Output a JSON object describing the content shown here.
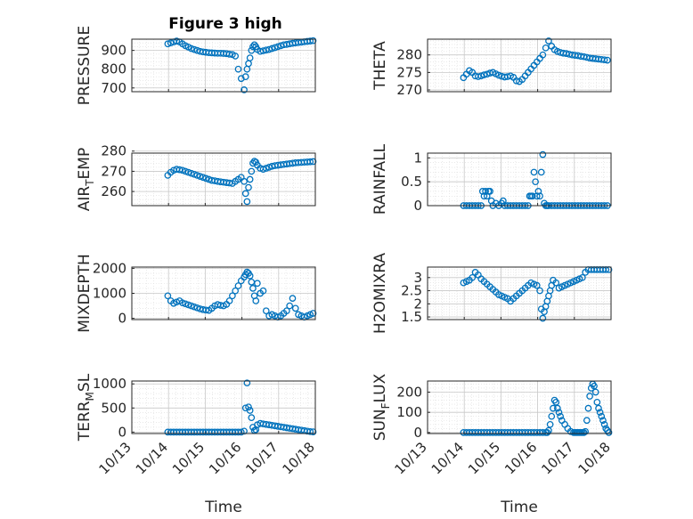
{
  "figure_title": "Figure 3 high",
  "series_color": "#0072BD",
  "x_axis": {
    "label": "Time",
    "ticks": [
      "10/13",
      "10/14",
      "10/15",
      "10/16",
      "10/17",
      "10/18"
    ],
    "xlim": [
      0,
      5
    ]
  },
  "chart_data": [
    {
      "type": "scatter",
      "title": "Figure 3 high",
      "ylabel": "PRESSURE",
      "ylabel_parts": [],
      "ylim": [
        680,
        960
      ],
      "yticks": [
        700,
        800,
        900
      ],
      "ytick_labels": [
        "700",
        "800",
        "900"
      ],
      "show_xticks": false,
      "x": [
        0.98,
        1.06,
        1.14,
        1.22,
        1.3,
        1.38,
        1.46,
        1.54,
        1.62,
        1.7,
        1.78,
        1.86,
        1.94,
        2.02,
        2.1,
        2.18,
        2.26,
        2.34,
        2.42,
        2.5,
        2.58,
        2.66,
        2.74,
        2.82,
        2.9,
        2.98,
        3.06,
        3.1,
        3.14,
        3.18,
        3.22,
        3.26,
        3.3,
        3.34,
        3.38,
        3.42,
        3.5,
        3.58,
        3.66,
        3.74,
        3.82,
        3.9,
        3.98,
        4.06,
        4.14,
        4.22,
        4.3,
        4.38,
        4.46,
        4.54,
        4.62,
        4.7,
        4.78,
        4.86,
        4.94
      ],
      "y": [
        935,
        940,
        945,
        950,
        945,
        935,
        925,
        918,
        910,
        905,
        900,
        895,
        892,
        890,
        888,
        887,
        886,
        885,
        885,
        884,
        883,
        880,
        878,
        870,
        800,
        750,
        690,
        760,
        800,
        830,
        860,
        900,
        920,
        930,
        920,
        905,
        895,
        898,
        902,
        905,
        910,
        915,
        920,
        925,
        930,
        932,
        935,
        938,
        940,
        942,
        944,
        946,
        948,
        950,
        952
      ]
    },
    {
      "type": "scatter",
      "title": "",
      "ylabel": "THETA",
      "ylabel_parts": [],
      "ylim": [
        269.5,
        284.5
      ],
      "yticks": [
        270,
        275,
        280
      ],
      "ytick_labels": [
        "270",
        "275",
        "280"
      ],
      "show_xticks": false,
      "x": [
        0.98,
        1.06,
        1.14,
        1.22,
        1.3,
        1.38,
        1.46,
        1.54,
        1.62,
        1.7,
        1.78,
        1.86,
        1.94,
        2.02,
        2.1,
        2.18,
        2.26,
        2.34,
        2.42,
        2.5,
        2.58,
        2.66,
        2.74,
        2.82,
        2.9,
        2.98,
        3.06,
        3.14,
        3.22,
        3.3,
        3.38,
        3.46,
        3.54,
        3.62,
        3.7,
        3.78,
        3.86,
        3.94,
        4.02,
        4.1,
        4.18,
        4.26,
        4.34,
        4.42,
        4.5,
        4.58,
        4.66,
        4.74,
        4.82,
        4.9
      ],
      "y": [
        273.5,
        274.5,
        275.5,
        275,
        274,
        273.8,
        274,
        274.3,
        274.5,
        274.8,
        275,
        274.6,
        274.2,
        273.9,
        273.7,
        273.8,
        274,
        273.6,
        272.6,
        272.4,
        273,
        274,
        275,
        276,
        277,
        278,
        279,
        280,
        282,
        284,
        282.5,
        281.5,
        281,
        280.7,
        280.5,
        280.4,
        280.2,
        280,
        279.9,
        279.8,
        279.6,
        279.5,
        279.3,
        279.1,
        279,
        278.9,
        278.8,
        278.7,
        278.6,
        278.5
      ]
    },
    {
      "type": "scatter",
      "title": "",
      "ylabel": "",
      "ylabel_parts": [
        "AIR",
        "T",
        "EMP"
      ],
      "ylim": [
        253,
        279
      ],
      "yticks": [
        260,
        270,
        280
      ],
      "ytick_labels": [
        "260",
        "270",
        "280"
      ],
      "show_xticks": false,
      "x": [
        0.98,
        1.06,
        1.14,
        1.22,
        1.3,
        1.38,
        1.46,
        1.54,
        1.62,
        1.7,
        1.78,
        1.86,
        1.94,
        2.02,
        2.1,
        2.18,
        2.26,
        2.34,
        2.42,
        2.5,
        2.58,
        2.66,
        2.74,
        2.82,
        2.9,
        2.98,
        3.06,
        3.1,
        3.14,
        3.18,
        3.22,
        3.26,
        3.3,
        3.34,
        3.38,
        3.42,
        3.5,
        3.58,
        3.66,
        3.74,
        3.82,
        3.9,
        3.98,
        4.06,
        4.14,
        4.22,
        4.3,
        4.38,
        4.46,
        4.54,
        4.62,
        4.7,
        4.78,
        4.86,
        4.94
      ],
      "y": [
        268,
        269.5,
        270.5,
        271,
        270.8,
        270.5,
        270,
        269.5,
        269,
        268.5,
        268,
        267.5,
        267,
        266.5,
        266,
        265.5,
        265.3,
        265,
        264.8,
        264.6,
        264.4,
        264.2,
        264,
        265,
        266,
        267,
        265,
        259,
        255,
        262,
        266,
        270,
        274,
        275,
        274.5,
        273,
        271.5,
        271,
        271.5,
        272,
        272.5,
        272.8,
        273,
        273.2,
        273.4,
        273.6,
        273.8,
        274,
        274.2,
        274.3,
        274.4,
        274.5,
        274.6,
        274.7,
        274.8
      ]
    },
    {
      "type": "scatter",
      "title": "",
      "ylabel": "RAINFALL",
      "ylabel_parts": [],
      "ylim": [
        0,
        1.1
      ],
      "yticks": [
        0,
        0.5,
        1
      ],
      "ytick_labels": [
        "0",
        "0.5",
        "1"
      ],
      "show_xticks": false,
      "x": [
        0.98,
        1.06,
        1.14,
        1.22,
        1.3,
        1.38,
        1.46,
        1.5,
        1.54,
        1.58,
        1.62,
        1.66,
        1.7,
        1.74,
        1.78,
        1.86,
        1.94,
        2.02,
        2.06,
        2.1,
        2.18,
        2.26,
        2.34,
        2.42,
        2.5,
        2.58,
        2.66,
        2.74,
        2.78,
        2.82,
        2.86,
        2.9,
        2.94,
        2.98,
        3.02,
        3.06,
        3.1,
        3.14,
        3.18,
        3.22,
        3.26,
        3.3,
        3.38,
        3.46,
        3.54,
        3.62,
        3.7,
        3.78,
        3.86,
        3.94,
        4.02,
        4.1,
        4.18,
        4.26,
        4.34,
        4.42,
        4.5,
        4.58,
        4.66,
        4.74,
        4.82,
        4.9
      ],
      "y": [
        0,
        0,
        0,
        0,
        0,
        0,
        0,
        0.3,
        0.2,
        0.3,
        0.2,
        0.3,
        0.3,
        0.1,
        0,
        0.05,
        0,
        0.05,
        0.1,
        0,
        0,
        0,
        0,
        0,
        0,
        0,
        0,
        0,
        0.2,
        0.2,
        0.2,
        0.7,
        0.5,
        0.2,
        0.3,
        0.2,
        0.7,
        1.07,
        0.05,
        0,
        0,
        0,
        0,
        0,
        0,
        0,
        0,
        0,
        0,
        0,
        0,
        0,
        0,
        0,
        0,
        0,
        0,
        0,
        0,
        0,
        0,
        0
      ]
    },
    {
      "type": "scatter",
      "title": "",
      "ylabel": "MIXDEPTH",
      "ylabel_parts": [],
      "ylim": [
        -50,
        2050
      ],
      "yticks": [
        0,
        1000,
        2000
      ],
      "ytick_labels": [
        "0",
        "1000",
        "2000"
      ],
      "show_xticks": false,
      "x": [
        0.98,
        1.06,
        1.14,
        1.22,
        1.3,
        1.38,
        1.46,
        1.54,
        1.62,
        1.7,
        1.78,
        1.86,
        1.94,
        2.02,
        2.1,
        2.18,
        2.26,
        2.34,
        2.42,
        2.5,
        2.58,
        2.66,
        2.74,
        2.82,
        2.9,
        2.98,
        3.06,
        3.1,
        3.14,
        3.18,
        3.22,
        3.26,
        3.3,
        3.34,
        3.38,
        3.42,
        3.5,
        3.58,
        3.66,
        3.74,
        3.82,
        3.9,
        3.98,
        4.06,
        4.14,
        4.22,
        4.3,
        4.38,
        4.46,
        4.54,
        4.62,
        4.7,
        4.78,
        4.86,
        4.94
      ],
      "y": [
        900,
        700,
        600,
        650,
        700,
        620,
        580,
        540,
        500,
        460,
        420,
        380,
        350,
        330,
        320,
        400,
        500,
        550,
        520,
        500,
        560,
        700,
        900,
        1100,
        1300,
        1500,
        1650,
        1750,
        1850,
        1800,
        1700,
        1450,
        1200,
        900,
        700,
        1400,
        1000,
        1100,
        300,
        100,
        150,
        100,
        50,
        100,
        200,
        300,
        500,
        800,
        400,
        150,
        100,
        50,
        100,
        150,
        200
      ]
    },
    {
      "type": "scatter",
      "title": "",
      "ylabel": "H2OMIXRA",
      "ylabel_parts": [],
      "ylim": [
        1.4,
        3.4
      ],
      "yticks": [
        1.5,
        2,
        2.5,
        3
      ],
      "ytick_labels": [
        "1.5",
        "2",
        "2.5",
        "3"
      ],
      "show_xticks": false,
      "x": [
        0.98,
        1.06,
        1.14,
        1.22,
        1.3,
        1.38,
        1.46,
        1.54,
        1.62,
        1.7,
        1.78,
        1.86,
        1.94,
        2.02,
        2.1,
        2.18,
        2.26,
        2.34,
        2.42,
        2.5,
        2.58,
        2.66,
        2.74,
        2.82,
        2.9,
        2.98,
        3.06,
        3.1,
        3.14,
        3.18,
        3.22,
        3.26,
        3.3,
        3.34,
        3.38,
        3.42,
        3.5,
        3.58,
        3.66,
        3.74,
        3.82,
        3.9,
        3.98,
        4.06,
        4.14,
        4.22,
        4.3,
        4.38,
        4.46,
        4.54,
        4.62,
        4.7,
        4.78,
        4.86,
        4.94
      ],
      "y": [
        2.8,
        2.85,
        2.9,
        3.0,
        3.2,
        3.1,
        2.95,
        2.85,
        2.75,
        2.65,
        2.55,
        2.45,
        2.35,
        2.3,
        2.25,
        2.2,
        2.1,
        2.2,
        2.3,
        2.4,
        2.5,
        2.6,
        2.7,
        2.8,
        2.75,
        2.7,
        2.5,
        1.8,
        1.45,
        1.7,
        1.9,
        2.1,
        2.3,
        2.5,
        2.7,
        2.9,
        2.8,
        2.6,
        2.65,
        2.7,
        2.75,
        2.8,
        2.85,
        2.9,
        2.95,
        3.0,
        3.2,
        3.3,
        3.3,
        3.3,
        3.3,
        3.3,
        3.3,
        3.3,
        3.3
      ]
    },
    {
      "type": "scatter",
      "title": "",
      "ylabel": "",
      "ylabel_parts": [
        "TERR",
        "M",
        "SL"
      ],
      "ylim": [
        -30,
        1060
      ],
      "yticks": [
        0,
        500,
        1000
      ],
      "ytick_labels": [
        "0",
        "500",
        "1000"
      ],
      "show_xticks": true,
      "x": [
        0.98,
        1.06,
        1.14,
        1.22,
        1.3,
        1.38,
        1.46,
        1.54,
        1.62,
        1.7,
        1.78,
        1.86,
        1.94,
        2.02,
        2.1,
        2.18,
        2.26,
        2.34,
        2.42,
        2.5,
        2.58,
        2.66,
        2.74,
        2.82,
        2.9,
        2.98,
        3.06,
        3.1,
        3.14,
        3.18,
        3.22,
        3.26,
        3.3,
        3.34,
        3.38,
        3.42,
        3.5,
        3.58,
        3.66,
        3.74,
        3.82,
        3.9,
        3.98,
        4.06,
        4.14,
        4.22,
        4.3,
        4.38,
        4.46,
        4.54,
        4.62,
        4.7,
        4.78,
        4.86,
        4.94
      ],
      "y": [
        0,
        0,
        0,
        0,
        0,
        0,
        0,
        0,
        0,
        0,
        0,
        0,
        0,
        0,
        0,
        0,
        0,
        0,
        0,
        0,
        0,
        0,
        0,
        0,
        0,
        0,
        20,
        500,
        1020,
        520,
        450,
        300,
        100,
        30,
        50,
        150,
        180,
        170,
        160,
        150,
        140,
        130,
        120,
        110,
        100,
        90,
        80,
        70,
        60,
        50,
        40,
        30,
        20,
        10,
        5
      ]
    },
    {
      "type": "scatter",
      "title": "",
      "ylabel": "",
      "ylabel_parts": [
        "SUN",
        "F",
        "LUX"
      ],
      "ylim": [
        -5,
        255
      ],
      "yticks": [
        0,
        100,
        200
      ],
      "ytick_labels": [
        "0",
        "100",
        "200"
      ],
      "show_xticks": true,
      "x": [
        0.98,
        1.06,
        1.14,
        1.22,
        1.3,
        1.38,
        1.46,
        1.54,
        1.62,
        1.7,
        1.78,
        1.86,
        1.94,
        2.02,
        2.1,
        2.18,
        2.26,
        2.34,
        2.42,
        2.5,
        2.58,
        2.66,
        2.74,
        2.82,
        2.9,
        2.98,
        3.06,
        3.14,
        3.22,
        3.26,
        3.3,
        3.34,
        3.38,
        3.42,
        3.46,
        3.5,
        3.54,
        3.58,
        3.62,
        3.66,
        3.74,
        3.82,
        3.9,
        3.98,
        4.02,
        4.06,
        4.1,
        4.14,
        4.18,
        4.22,
        4.26,
        4.3,
        4.34,
        4.38,
        4.42,
        4.46,
        4.5,
        4.54,
        4.58,
        4.62,
        4.66,
        4.7,
        4.74,
        4.78,
        4.82,
        4.86,
        4.9,
        4.94
      ],
      "y": [
        0,
        0,
        0,
        0,
        0,
        0,
        0,
        0,
        0,
        0,
        0,
        0,
        0,
        0,
        0,
        0,
        0,
        0,
        0,
        0,
        0,
        0,
        0,
        0,
        0,
        0,
        0,
        0,
        0,
        0,
        10,
        40,
        80,
        120,
        160,
        150,
        120,
        100,
        80,
        60,
        40,
        20,
        5,
        0,
        0,
        0,
        0,
        0,
        0,
        0,
        0,
        5,
        60,
        120,
        180,
        220,
        240,
        230,
        200,
        150,
        120,
        100,
        80,
        60,
        40,
        20,
        10,
        0
      ]
    }
  ]
}
